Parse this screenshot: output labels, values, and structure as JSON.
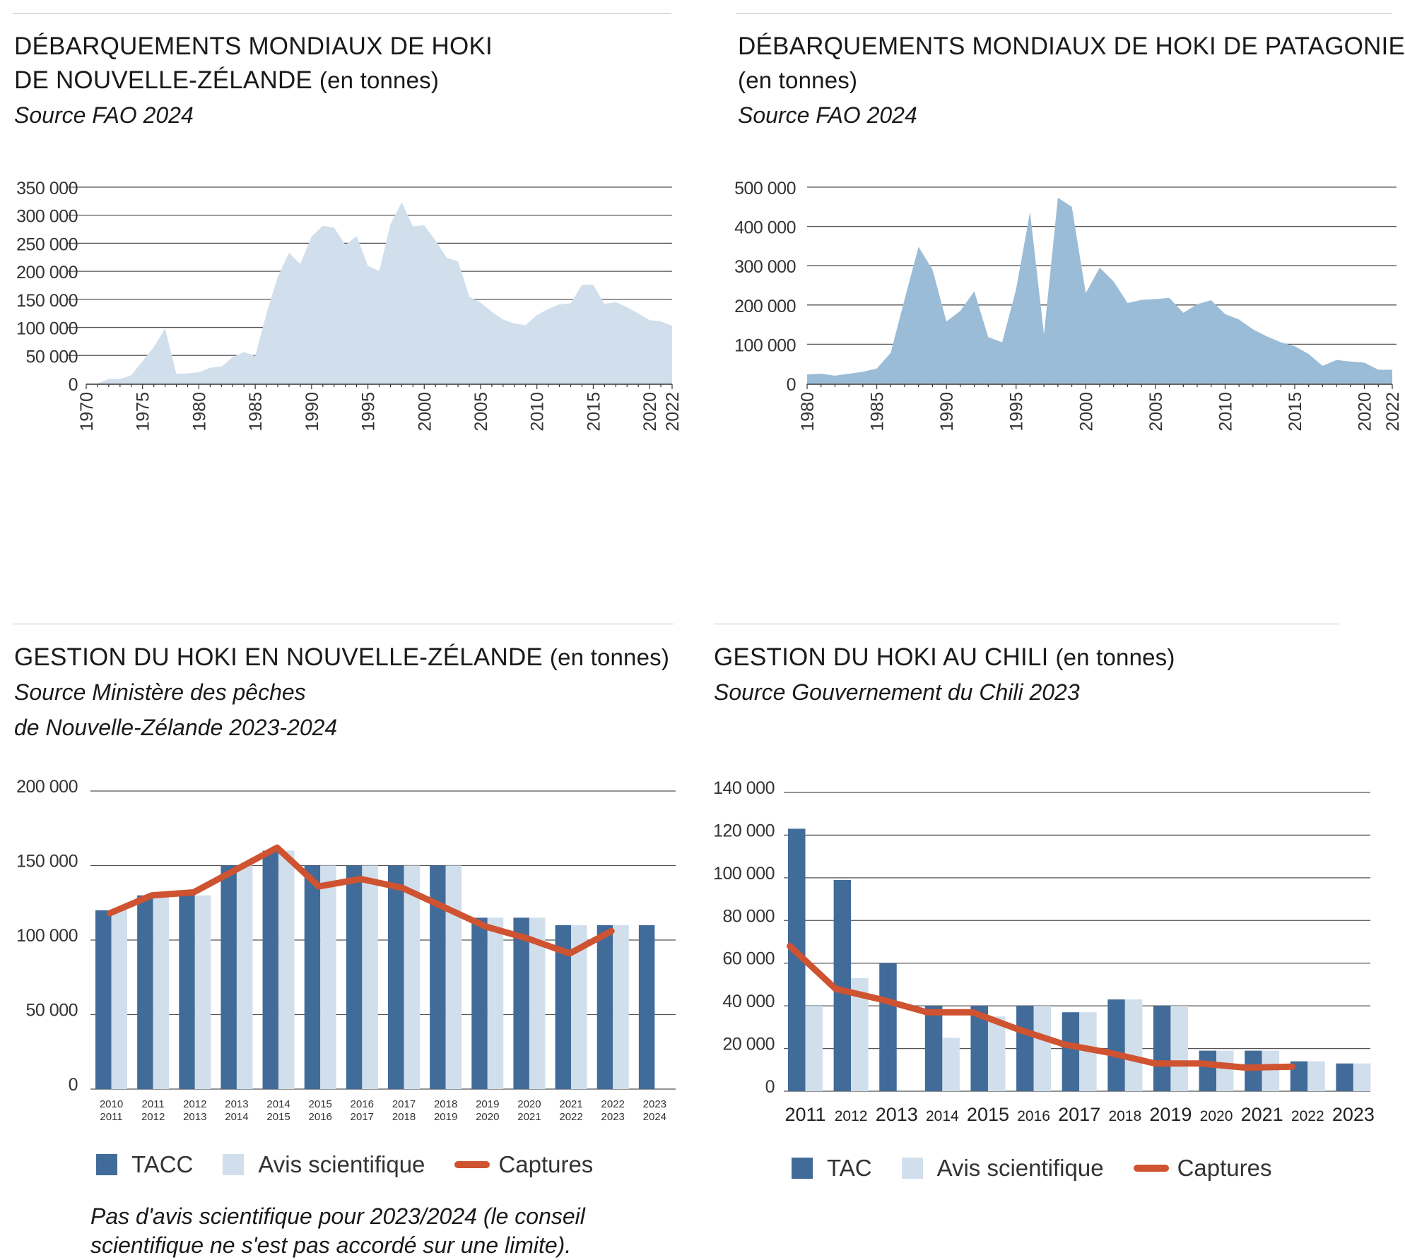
{
  "colors": {
    "area_nz": "#d1dfec",
    "area_pat": "#9bbcd7",
    "tac": "#416b99",
    "avis": "#d1dfec",
    "captures": "#cf5330",
    "grid": "#555555"
  },
  "panels": {
    "nz_landings": {
      "title_main": "DÉBARQUEMENTS MONDIAUX DE HOKI",
      "title_line2": "DE NOUVELLE-ZÉLANDE",
      "title_unit": "(en tonnes)",
      "source": "Source FAO 2024"
    },
    "pat_landings": {
      "title_main": "DÉBARQUEMENTS MONDIAUX DE HOKI DE PATAGONIE",
      "title_unit": "(en tonnes)",
      "source": "Source FAO 2024"
    },
    "nz_management": {
      "title_main": "GESTION DU HOKI EN NOUVELLE-ZÉLANDE",
      "title_unit": "(en tonnes)",
      "source_line1": "Source Ministère des pêches",
      "source_line2": "de Nouvelle-Zélande 2023-2024",
      "legend": [
        "TACC",
        "Avis scientifique",
        "Captures"
      ],
      "note_line1": "Pas d'avis scientifique pour 2023/2024 (le conseil",
      "note_line2": "scientifique ne s'est pas accordé sur une limite)."
    },
    "chile_management": {
      "title_main": "GESTION DU HOKI AU CHILI",
      "title_unit": "(en tonnes)",
      "source": "Source Gouvernement du Chili 2023",
      "legend": [
        "TAC",
        "Avis scientifique",
        "Captures"
      ]
    }
  },
  "chart_data": [
    {
      "type": "area",
      "title": "DÉBARQUEMENTS MONDIAUX DE HOKI DE NOUVELLE-ZÉLANDE (en tonnes)",
      "ylim": [
        0,
        350000
      ],
      "yticks": [
        0,
        50000,
        100000,
        150000,
        200000,
        250000,
        300000,
        350000
      ],
      "ytick_labels": [
        "0",
        "50 000",
        "100 000",
        "150 000",
        "200 000",
        "250 000",
        "300 000",
        "350 000"
      ],
      "xlim": [
        1970,
        2022
      ],
      "xticks": [
        1970,
        1975,
        1980,
        1985,
        1990,
        1995,
        2000,
        2005,
        2010,
        2015,
        2020,
        2022
      ],
      "x": [
        1971,
        1972,
        1973,
        1974,
        1975,
        1976,
        1977,
        1978,
        1979,
        1980,
        1981,
        1982,
        1983,
        1984,
        1985,
        1986,
        1987,
        1988,
        1989,
        1990,
        1991,
        1992,
        1993,
        1994,
        1995,
        1996,
        1997,
        1998,
        1999,
        2000,
        2001,
        2002,
        2003,
        2004,
        2005,
        2006,
        2007,
        2008,
        2009,
        2010,
        2011,
        2012,
        2013,
        2014,
        2015,
        2016,
        2017,
        2018,
        2019,
        2020,
        2021,
        2022
      ],
      "values": [
        0,
        8000,
        8000,
        15000,
        40000,
        65000,
        98000,
        17000,
        18000,
        20000,
        28000,
        30000,
        47000,
        56000,
        49000,
        125000,
        190000,
        233000,
        213000,
        262000,
        281000,
        278000,
        247000,
        263000,
        210000,
        200000,
        284000,
        323000,
        280000,
        282000,
        255000,
        224000,
        218000,
        155000,
        144000,
        128000,
        114000,
        107000,
        104000,
        122000,
        133000,
        141000,
        143000,
        176000,
        176000,
        142000,
        145000,
        136000,
        125000,
        113000,
        111000,
        103000
      ]
    },
    {
      "type": "area",
      "title": "DÉBARQUEMENTS MONDIAUX DE HOKI DE PATAGONIE (en tonnes)",
      "ylim": [
        0,
        500000
      ],
      "yticks": [
        0,
        100000,
        200000,
        300000,
        400000,
        500000
      ],
      "ytick_labels": [
        "0",
        "100 000",
        "200 000",
        "300 000",
        "400 000",
        "500 000"
      ],
      "xlim": [
        1980,
        2022
      ],
      "xticks": [
        1980,
        1985,
        1990,
        1995,
        2000,
        2005,
        2010,
        2015,
        2020,
        2022
      ],
      "x": [
        1980,
        1981,
        1982,
        1983,
        1984,
        1985,
        1986,
        1987,
        1988,
        1989,
        1990,
        1991,
        1992,
        1993,
        1994,
        1995,
        1996,
        1997,
        1998,
        1999,
        2000,
        2001,
        2002,
        2003,
        2004,
        2005,
        2006,
        2007,
        2008,
        2009,
        2010,
        2011,
        2012,
        2013,
        2014,
        2015,
        2016,
        2017,
        2018,
        2019,
        2020,
        2021,
        2022
      ],
      "values": [
        23000,
        25000,
        20000,
        25000,
        30000,
        38000,
        78000,
        215000,
        348000,
        290000,
        158000,
        185000,
        235000,
        118000,
        105000,
        240000,
        437000,
        125000,
        473000,
        450000,
        230000,
        295000,
        260000,
        205000,
        213000,
        215000,
        218000,
        180000,
        202000,
        212000,
        177000,
        163000,
        138000,
        120000,
        105000,
        95000,
        75000,
        45000,
        60000,
        56000,
        53000,
        35000,
        35000
      ]
    },
    {
      "type": "bar",
      "title": "GESTION DU HOKI EN NOUVELLE-ZÉLANDE (en tonnes)",
      "ylim": [
        0,
        200000
      ],
      "yticks": [
        0,
        50000,
        100000,
        150000,
        200000
      ],
      "ytick_labels": [
        "0",
        "50 000",
        "100 000",
        "150 000",
        "200 000"
      ],
      "categories": [
        [
          "2010",
          "2011"
        ],
        [
          "2011",
          "2012"
        ],
        [
          "2012",
          "2013"
        ],
        [
          "2013",
          "2014"
        ],
        [
          "2014",
          "2015"
        ],
        [
          "2015",
          "2016"
        ],
        [
          "2016",
          "2017"
        ],
        [
          "2017",
          "2018"
        ],
        [
          "2018",
          "2019"
        ],
        [
          "2019",
          "2020"
        ],
        [
          "2020",
          "2021"
        ],
        [
          "2021",
          "2022"
        ],
        [
          "2022",
          "2023"
        ],
        [
          "2023",
          "2024"
        ]
      ],
      "series": [
        {
          "name": "TACC",
          "kind": "bar",
          "values": [
            120000,
            130000,
            130000,
            150000,
            160000,
            150000,
            150000,
            150000,
            150000,
            115000,
            115000,
            110000,
            110000,
            110000
          ]
        },
        {
          "name": "Avis scientifique",
          "kind": "bar",
          "values": [
            120000,
            130000,
            130000,
            150000,
            160000,
            150000,
            150000,
            150000,
            150000,
            115000,
            115000,
            110000,
            110000,
            null
          ]
        },
        {
          "name": "Captures",
          "kind": "line",
          "values": [
            118000,
            130000,
            132000,
            147000,
            162000,
            136000,
            141000,
            135000,
            122000,
            109000,
            101000,
            91000,
            106000,
            null
          ]
        }
      ]
    },
    {
      "type": "bar",
      "title": "GESTION DU HOKI AU CHILI (en tonnes)",
      "ylim": [
        0,
        140000
      ],
      "yticks": [
        0,
        20000,
        40000,
        60000,
        80000,
        100000,
        120000,
        140000
      ],
      "ytick_labels": [
        "0",
        "20 000",
        "40 000",
        "60 000",
        "80 000",
        "100 000",
        "120 000",
        "140 000"
      ],
      "categories": [
        "2011",
        "2012",
        "2013",
        "2014",
        "2015",
        "2016",
        "2017",
        "2018",
        "2019",
        "2020",
        "2021",
        "2022",
        "2023"
      ],
      "series": [
        {
          "name": "TAC",
          "kind": "bar",
          "values": [
            123000,
            99000,
            60000,
            40000,
            40000,
            40000,
            37000,
            43000,
            40000,
            19000,
            19000,
            14000,
            13000
          ]
        },
        {
          "name": "Avis scientifique",
          "kind": "bar",
          "values": [
            40000,
            53000,
            null,
            25000,
            35000,
            40000,
            37000,
            43000,
            40000,
            19000,
            19000,
            14000,
            13000
          ]
        },
        {
          "name": "Captures",
          "kind": "line",
          "values": [
            68000,
            48000,
            43000,
            37000,
            37000,
            29000,
            22000,
            18000,
            13000,
            13000,
            11000,
            11500,
            null
          ]
        }
      ]
    }
  ]
}
